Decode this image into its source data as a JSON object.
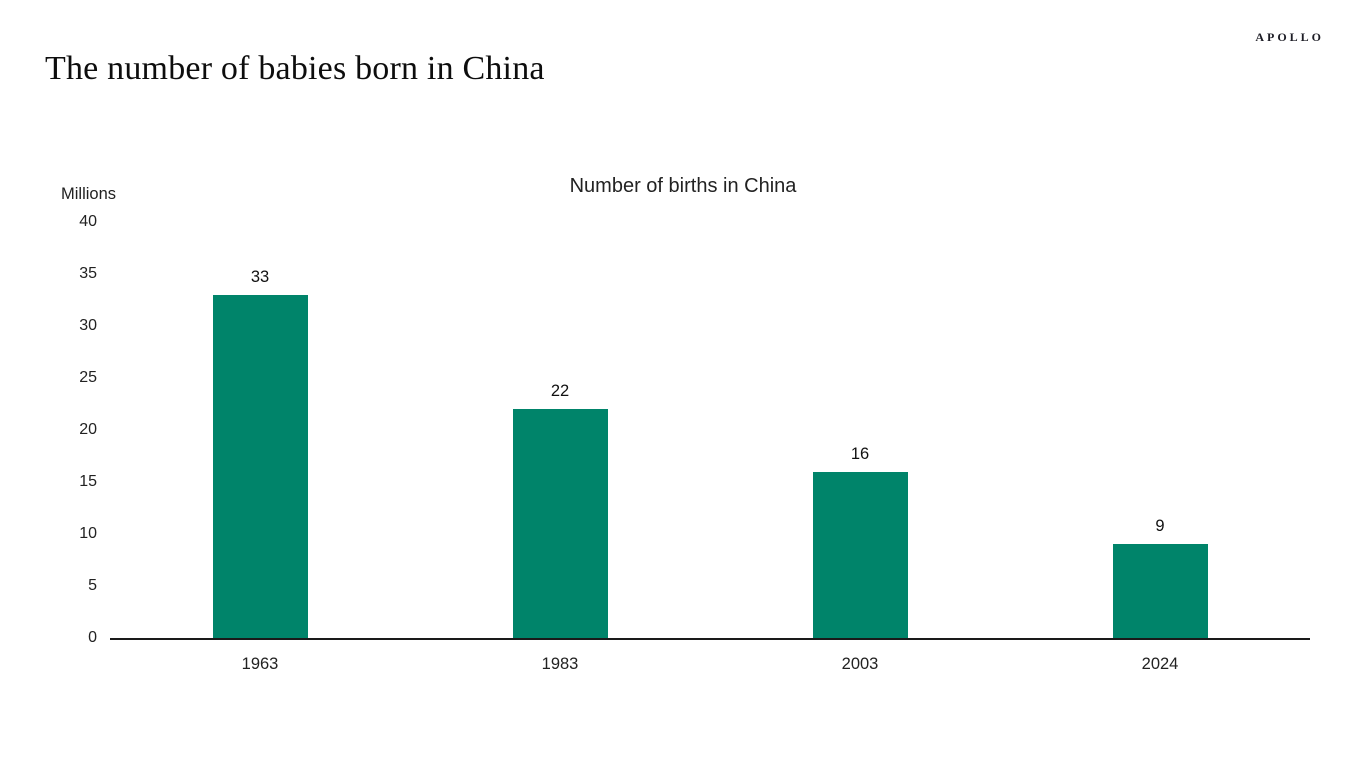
{
  "header": {
    "title": "The number of babies born in China",
    "brand": "APOLLO"
  },
  "chart_data": {
    "type": "bar",
    "title": "Number of births in China",
    "unit_label": "Millions",
    "categories": [
      "1963",
      "1983",
      "2003",
      "2024"
    ],
    "values": [
      33,
      22,
      16,
      9
    ],
    "value_labels": [
      "33",
      "22",
      "16",
      "9"
    ],
    "ylim": [
      0,
      40
    ],
    "ytick_step": 5,
    "bar_color": "#00846A",
    "axis_color": "#1a1a1a",
    "grid": "off",
    "legend": "none"
  }
}
